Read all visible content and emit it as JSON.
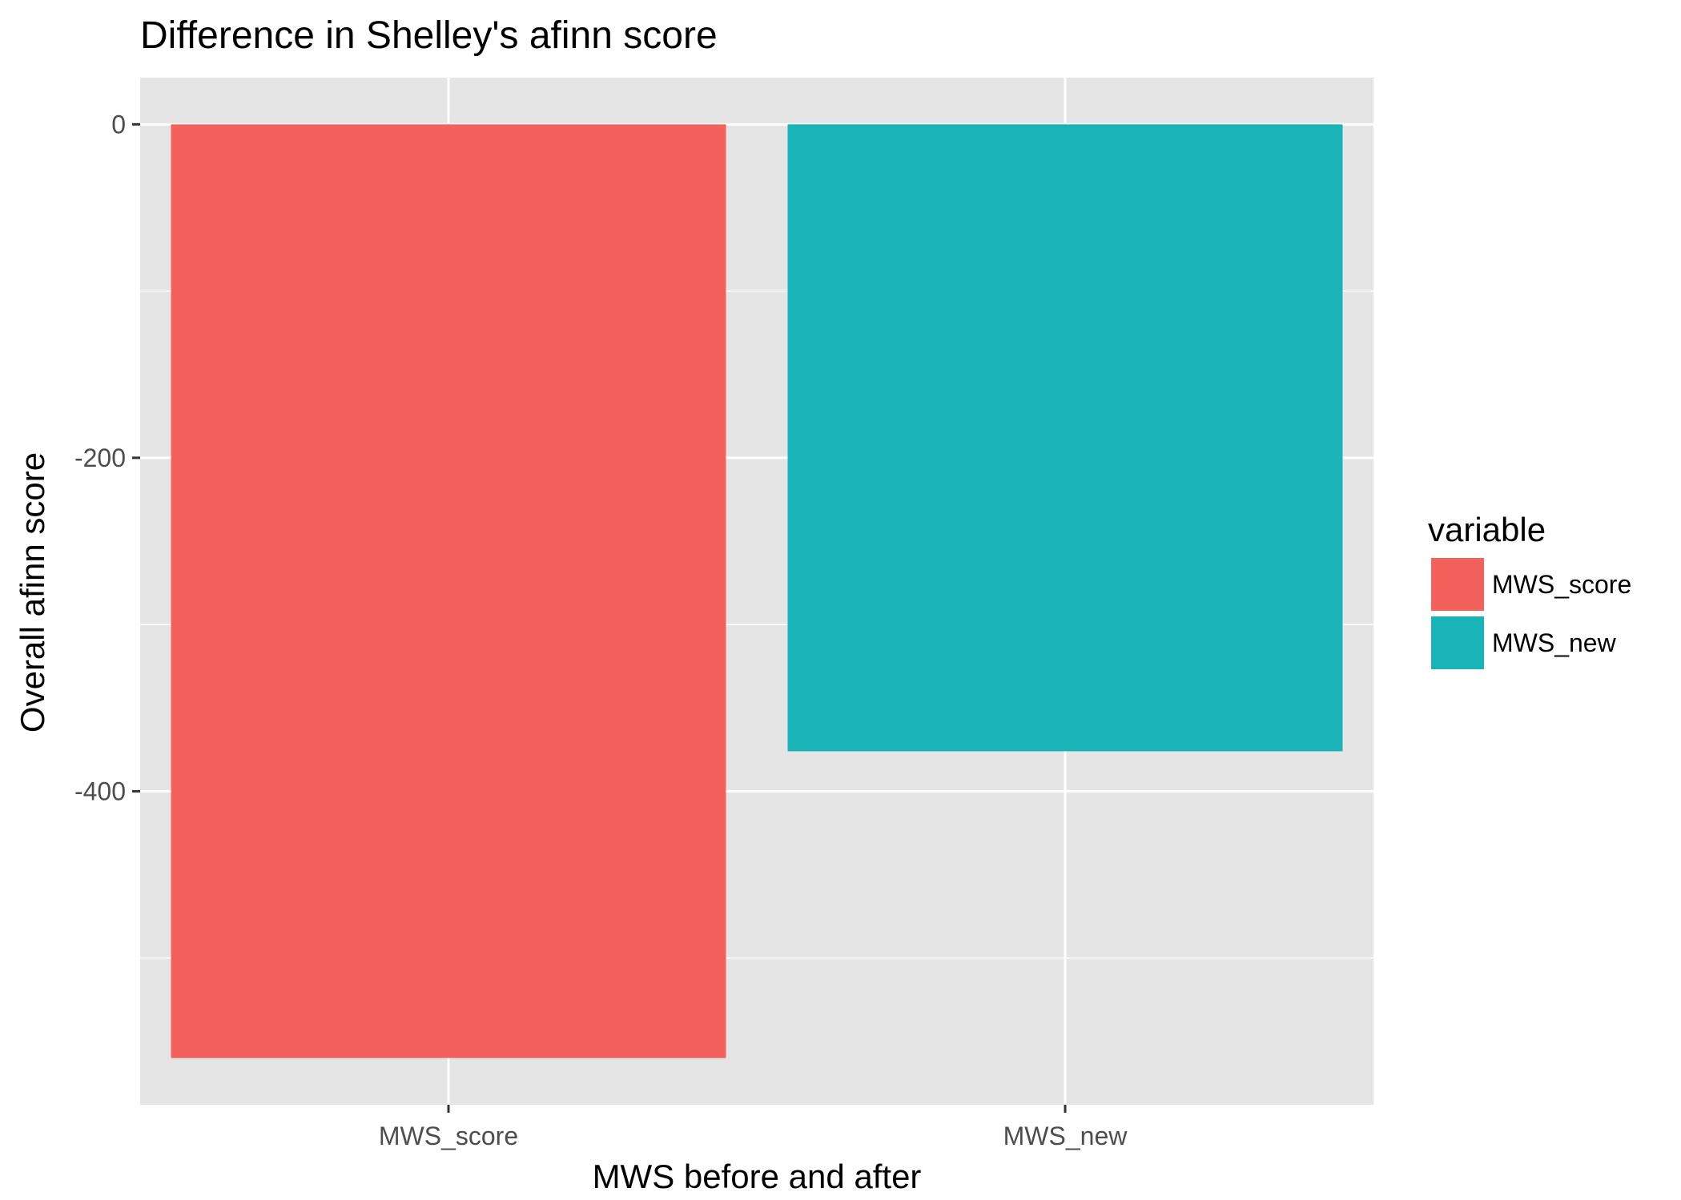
{
  "chart_data": {
    "type": "bar",
    "title": "Difference in Shelley's afinn score",
    "xlabel": "MWS before and after",
    "ylabel": "Overall afinn score",
    "categories": [
      "MWS_score",
      "MWS_new"
    ],
    "values": [
      -560,
      -376
    ],
    "colors": [
      "#F3615D",
      "#1AB3B8"
    ],
    "ylim": [
      -588,
      28
    ],
    "yticks": [
      0,
      -200,
      -400
    ],
    "ytick_labels": [
      "0",
      "-200",
      "-400"
    ],
    "grid": true,
    "legend": {
      "title": "variable",
      "position": "right",
      "entries": [
        "MWS_score",
        "MWS_new"
      ]
    },
    "panel_background": "#E5E5E5",
    "grid_color": "#FFFFFF"
  }
}
